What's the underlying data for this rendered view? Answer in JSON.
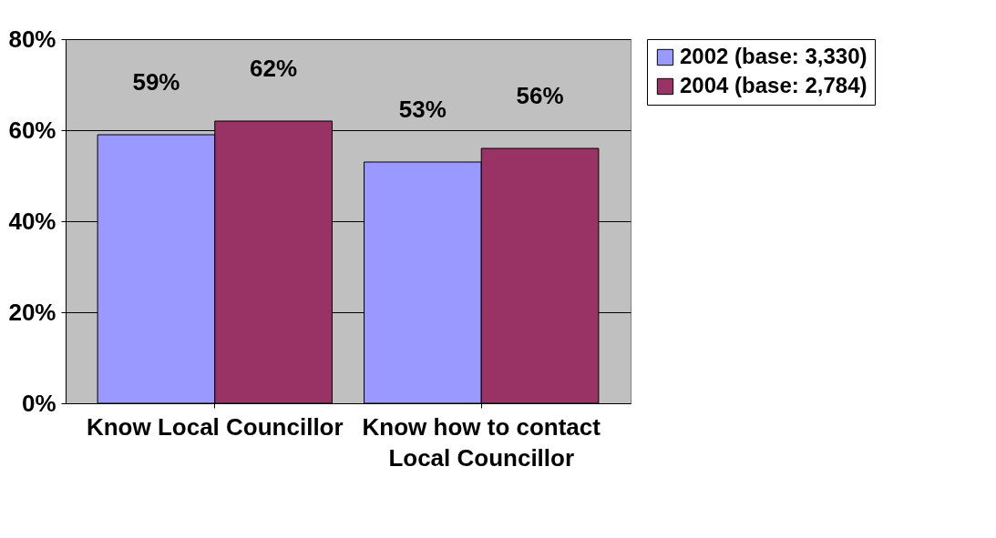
{
  "chart_data": {
    "type": "bar",
    "categories": [
      "Know Local Councillor",
      "Know how to contact Local Councillor"
    ],
    "series": [
      {
        "name": "2002 (base: 3,330)",
        "color": "#9999ff",
        "values": [
          59,
          53
        ],
        "value_labels": [
          "59%",
          "53%"
        ]
      },
      {
        "name": "2004 (base: 2,784)",
        "color": "#993366",
        "values": [
          62,
          56
        ],
        "value_labels": [
          "62%",
          "56%"
        ]
      }
    ],
    "ylim": [
      0,
      80
    ],
    "yticks": [
      {
        "value": 0,
        "label": "0%"
      },
      {
        "value": 20,
        "label": "20%"
      },
      {
        "value": 40,
        "label": "40%"
      },
      {
        "value": 60,
        "label": "60%"
      },
      {
        "value": 80,
        "label": "80%"
      }
    ],
    "grid": "y",
    "legend": "top right"
  }
}
